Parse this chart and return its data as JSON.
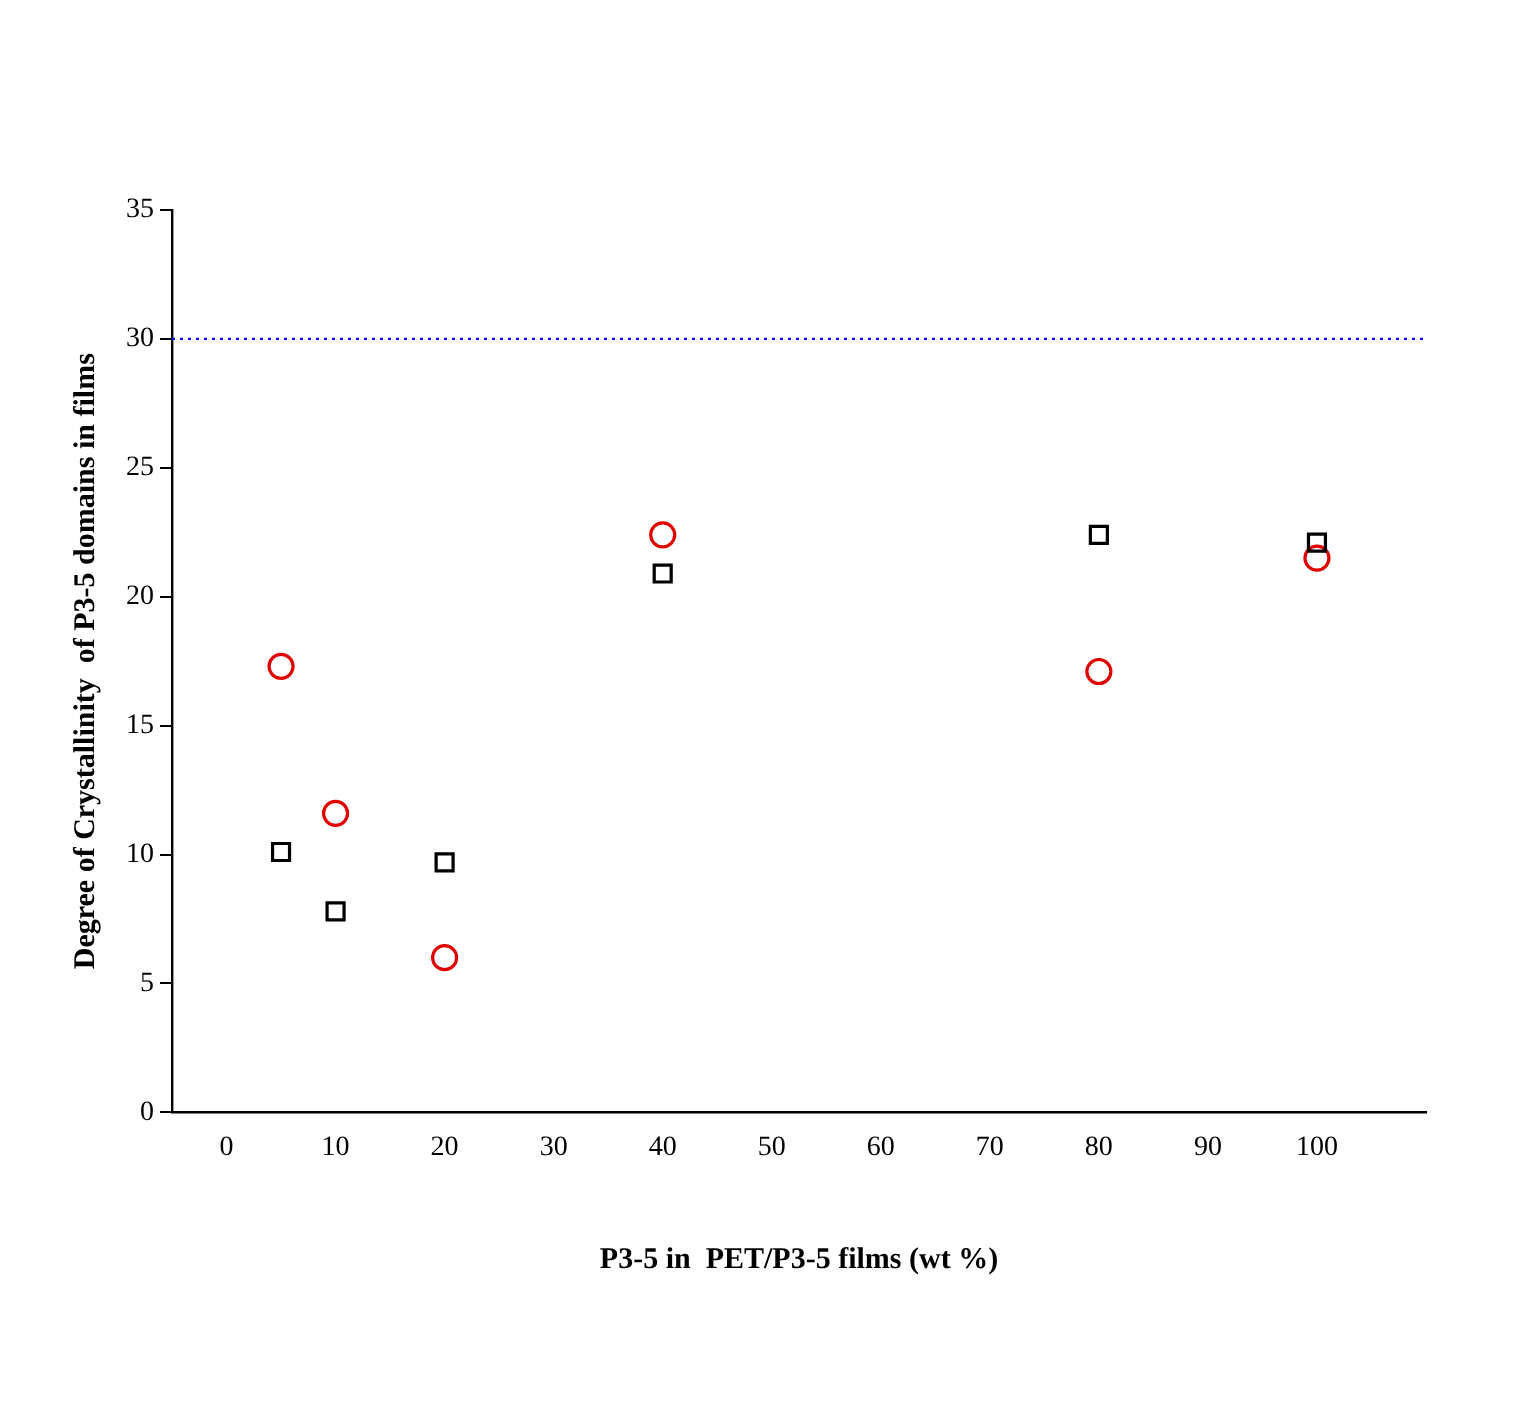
{
  "chart_data": {
    "type": "scatter",
    "xlabel": "P3-5 in  PET/P3-5 films (wt %)",
    "ylabel": "Degree of Crystallinity  of P3-5 domains in films",
    "xlim": [
      -5,
      110
    ],
    "xticks": [
      0,
      10,
      20,
      30,
      40,
      50,
      60,
      70,
      80,
      90,
      100
    ],
    "ylim": [
      0,
      35
    ],
    "yticks": [
      0,
      5,
      10,
      15,
      20,
      25,
      30,
      35
    ],
    "grid": false,
    "legend": false,
    "series": [
      {
        "color": "#000000",
        "marker": "square",
        "x": [
          5,
          10,
          20,
          40,
          80,
          100
        ],
        "values": [
          10.1,
          7.8,
          9.7,
          20.9,
          22.4,
          22.1
        ]
      },
      {
        "color": "#e00000",
        "marker": "circle",
        "x": [
          5,
          10,
          20,
          40,
          80,
          100
        ],
        "values": [
          17.3,
          11.6,
          6.0,
          22.4,
          17.1,
          21.5
        ]
      }
    ],
    "ref_lines": [
      {
        "axis": "y",
        "value": 30,
        "color": "#0000ff",
        "line_style": "dotted"
      }
    ]
  }
}
